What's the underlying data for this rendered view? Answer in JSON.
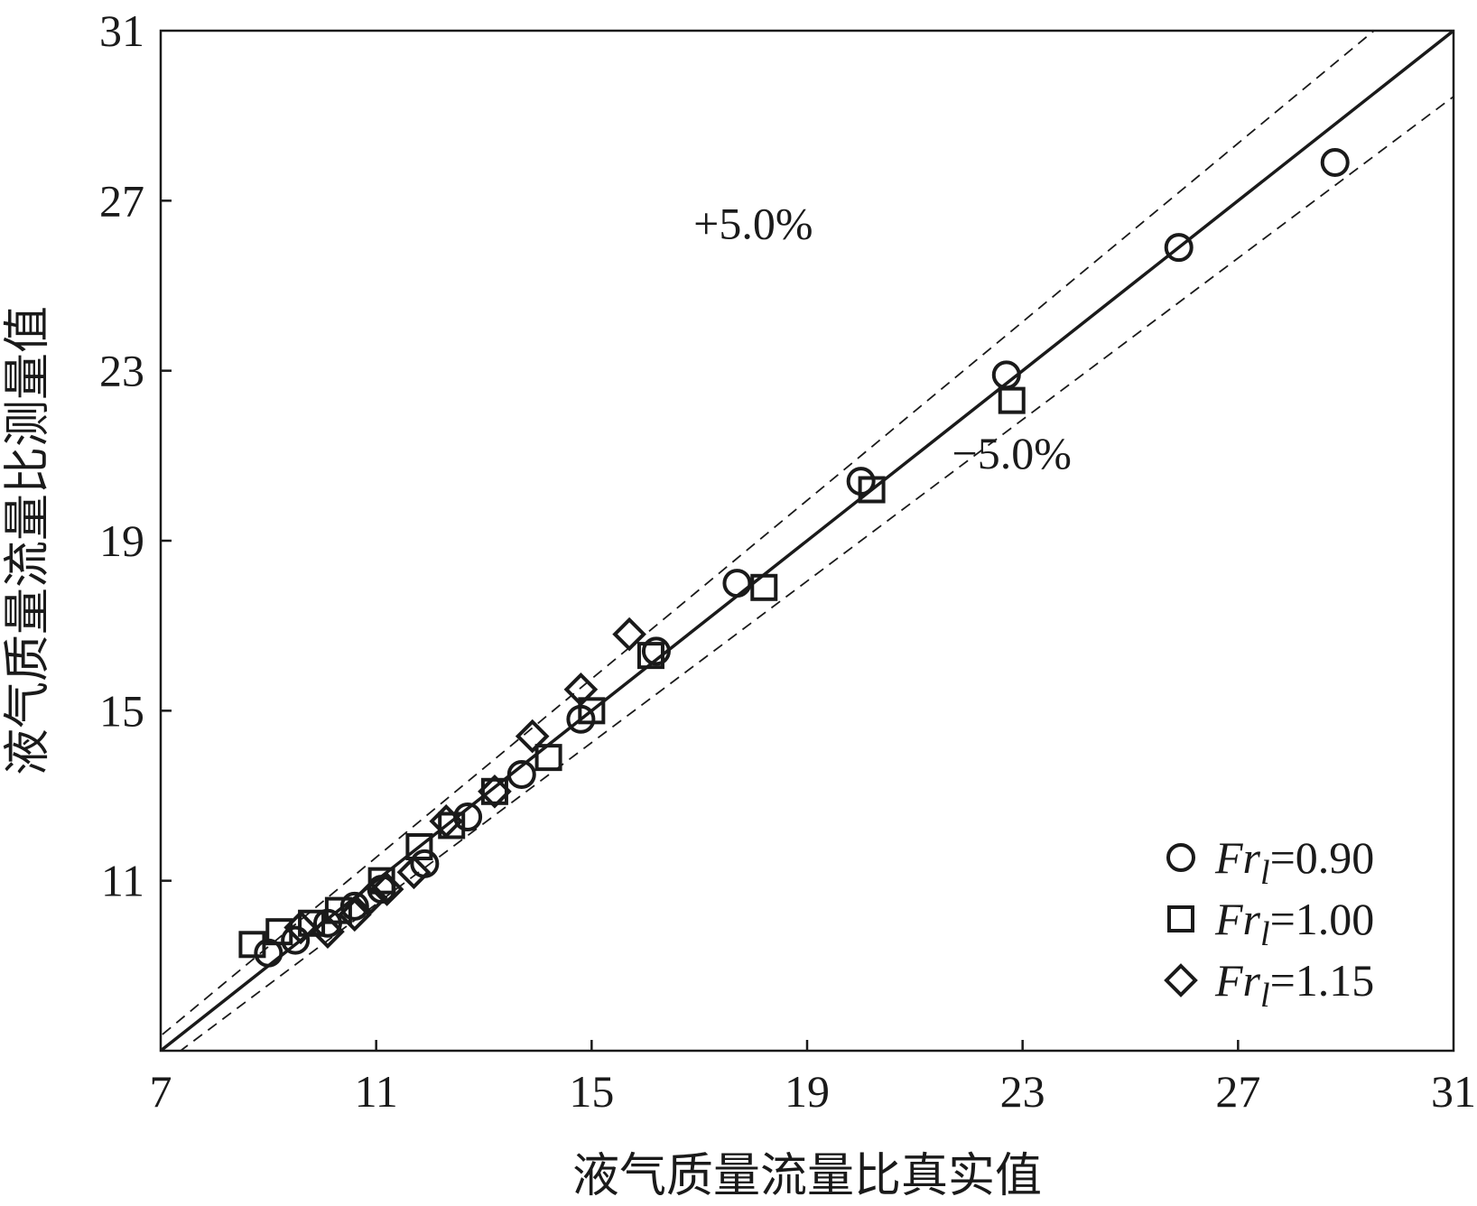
{
  "chart_data": {
    "type": "scatter",
    "xlabel": "液气质量流量比真实值",
    "ylabel": "液气质量流量比测量值",
    "xlim": [
      7,
      31
    ],
    "ylim": [
      7,
      31
    ],
    "xticks": [
      "7",
      "11",
      "15",
      "19",
      "23",
      "27",
      "31"
    ],
    "yticks": [
      "31",
      "27",
      "23",
      "19",
      "15",
      "11"
    ],
    "grid": false,
    "legend_position": "bottom-right",
    "reference_lines": [
      {
        "kind": "identity",
        "slope": 1.0,
        "style": "solid"
      },
      {
        "kind": "upper",
        "slope": 1.05,
        "style": "dashed"
      },
      {
        "kind": "lower",
        "slope": 0.95,
        "style": "dashed"
      }
    ],
    "annotations": [
      {
        "id": "upper",
        "text": "+5.0%",
        "x": 18.0,
        "y": 26.1
      },
      {
        "id": "lower",
        "text": "−5.0%",
        "x": 22.8,
        "y": 20.7
      }
    ],
    "series": [
      {
        "name_prefix": "Fr",
        "name_sub": "l",
        "name_suffix": "=0.90",
        "marker": "circle",
        "points": [
          [
            9.0,
            9.3
          ],
          [
            9.5,
            9.6
          ],
          [
            10.1,
            10.0
          ],
          [
            10.6,
            10.4
          ],
          [
            11.1,
            10.8
          ],
          [
            11.9,
            11.4
          ],
          [
            12.7,
            12.5
          ],
          [
            13.7,
            13.5
          ],
          [
            14.8,
            14.8
          ],
          [
            16.2,
            16.4
          ],
          [
            17.7,
            18.0
          ],
          [
            20.0,
            20.4
          ],
          [
            22.7,
            22.9
          ],
          [
            25.9,
            25.9
          ],
          [
            28.8,
            27.9
          ]
        ]
      },
      {
        "name_prefix": "Fr",
        "name_sub": "l",
        "name_suffix": "=1.00",
        "marker": "square",
        "points": [
          [
            8.7,
            9.5
          ],
          [
            9.2,
            9.8
          ],
          [
            9.8,
            10.0
          ],
          [
            10.3,
            10.3
          ],
          [
            11.1,
            11.0
          ],
          [
            11.8,
            11.8
          ],
          [
            12.4,
            12.3
          ],
          [
            13.2,
            13.1
          ],
          [
            14.2,
            13.9
          ],
          [
            15.0,
            15.0
          ],
          [
            16.1,
            16.3
          ],
          [
            18.2,
            17.9
          ],
          [
            20.2,
            20.2
          ],
          [
            22.8,
            22.3
          ]
        ]
      },
      {
        "name_prefix": "Fr",
        "name_sub": "l",
        "name_suffix": "=1.15",
        "marker": "diamond",
        "points": [
          [
            9.6,
            9.9
          ],
          [
            10.1,
            9.8
          ],
          [
            10.6,
            10.2
          ],
          [
            10.9,
            10.6
          ],
          [
            11.2,
            10.8
          ],
          [
            11.7,
            11.2
          ],
          [
            12.3,
            12.4
          ],
          [
            13.2,
            13.1
          ],
          [
            13.9,
            14.4
          ],
          [
            14.8,
            15.5
          ],
          [
            15.7,
            16.8
          ]
        ]
      }
    ]
  }
}
